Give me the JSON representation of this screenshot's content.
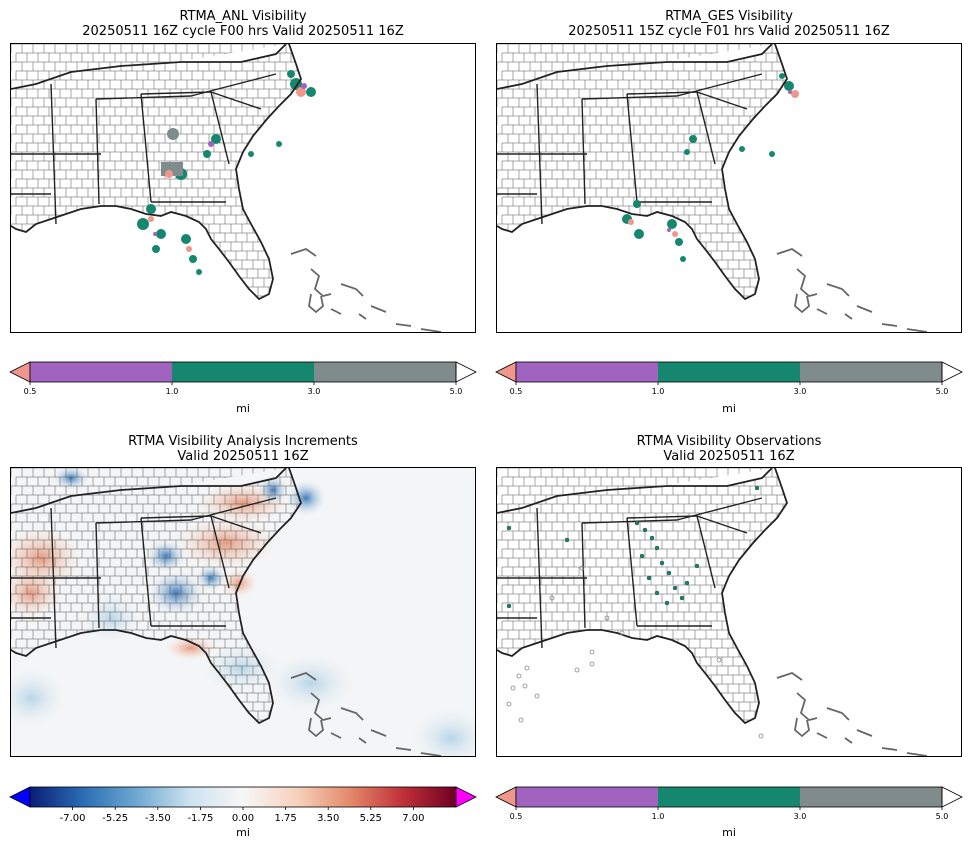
{
  "chart_data": [
    {
      "type": "map",
      "title_line1": "RTMA_ANL Visibility",
      "title_line2": "20250511 16Z cycle F00 hrs Valid 20250511 16Z",
      "colorbar": {
        "unit": "mi",
        "boundaries": [
          0.5,
          1.0,
          3.0,
          5.0
        ],
        "tick_labels": [
          "0.5",
          "1.0",
          "3.0",
          "5.0"
        ],
        "colors": [
          "#a064c0",
          "#14876e",
          "#808c8c"
        ],
        "under_color": "#f0968c",
        "over_color": "#ffffff"
      }
    },
    {
      "type": "map",
      "title_line1": "RTMA_GES Visibility",
      "title_line2": "20250511 15Z cycle F01 hrs Valid 20250511 16Z",
      "colorbar": {
        "unit": "mi",
        "boundaries": [
          0.5,
          1.0,
          3.0,
          5.0
        ],
        "tick_labels": [
          "0.5",
          "1.0",
          "3.0",
          "5.0"
        ],
        "colors": [
          "#a064c0",
          "#14876e",
          "#808c8c"
        ],
        "under_color": "#f0968c",
        "over_color": "#ffffff"
      }
    },
    {
      "type": "map",
      "title_line1": "RTMA Visibility Analysis Increments",
      "title_line2": "Valid 20250511 16Z",
      "colorbar": {
        "unit": "mi",
        "range": [
          -8.75,
          8.75
        ],
        "ticks": [
          -7.0,
          -5.25,
          -3.5,
          -1.75,
          0.0,
          1.75,
          3.5,
          5.25,
          7.0
        ],
        "tick_labels": [
          "-7.00",
          "-5.25",
          "-3.50",
          "-1.75",
          "0.00",
          "1.75",
          "3.50",
          "5.25",
          "7.00"
        ],
        "gradient": [
          "#0a1e78",
          "#2a6db3",
          "#6ea8d2",
          "#cde2ef",
          "#f7f7f7",
          "#f7d2bd",
          "#e48a6b",
          "#c0303a",
          "#6e0020"
        ],
        "under_color": "#0000ff",
        "over_color": "#ff00ff"
      }
    },
    {
      "type": "map",
      "title_line1": "RTMA Visibility Observations",
      "title_line2": "Valid 20250511 16Z",
      "colorbar": {
        "unit": "mi",
        "boundaries": [
          0.5,
          1.0,
          3.0,
          5.0
        ],
        "tick_labels": [
          "0.5",
          "1.0",
          "3.0",
          "5.0"
        ],
        "colors": [
          "#a064c0",
          "#14876e",
          "#808c8c"
        ],
        "under_color": "#f0968c",
        "over_color": "#ffffff"
      }
    }
  ],
  "colors": {
    "coast": "#222222",
    "county": "#555555",
    "obs_marker": "#888888"
  }
}
